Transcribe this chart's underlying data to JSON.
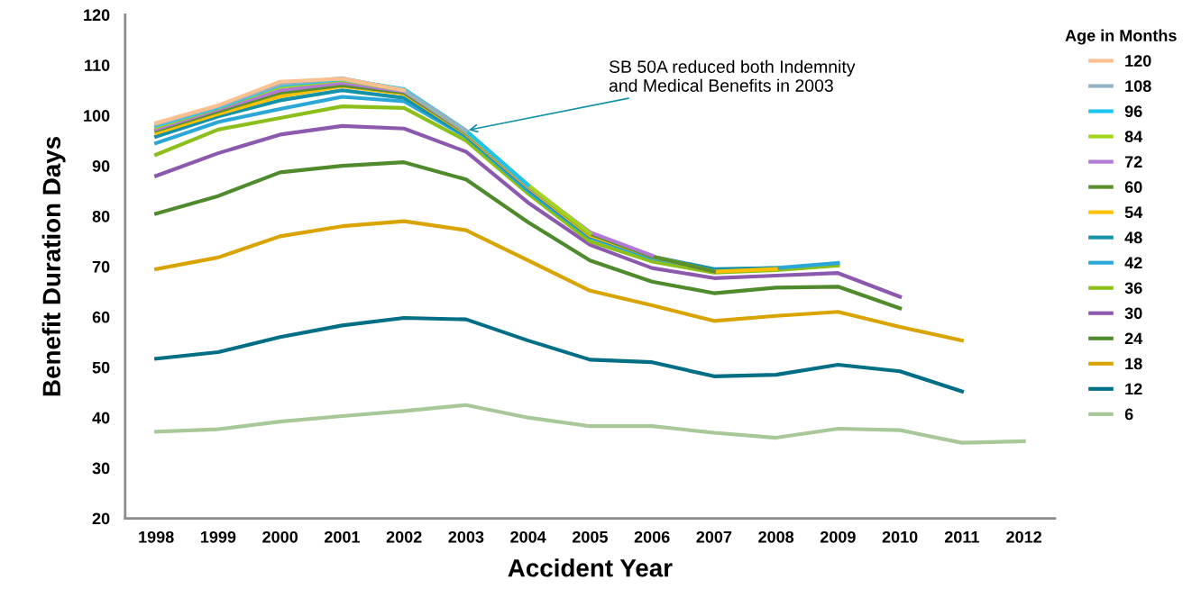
{
  "chart_data": {
    "type": "line",
    "xlabel": "Accident Year",
    "ylabel": "Benefit Duration Days",
    "legend_title": "Age in Months",
    "legend": "right",
    "grid": false,
    "marker": "none",
    "line_style": "solid",
    "x": [
      1998,
      1999,
      2000,
      2001,
      2002,
      2003,
      2004,
      2005,
      2006,
      2007,
      2008,
      2009,
      2010,
      2011,
      2012
    ],
    "xlim": [
      1997.5,
      2012.5
    ],
    "xticks": [
      1998,
      1999,
      2000,
      2001,
      2002,
      2003,
      2004,
      2005,
      2006,
      2007,
      2008,
      2009,
      2010,
      2011,
      2012
    ],
    "ylim": [
      20,
      120
    ],
    "yticks": [
      20,
      30,
      40,
      50,
      60,
      70,
      80,
      90,
      100,
      110,
      120
    ],
    "annotations": [
      {
        "text": "SB 50A reduced both Indemnity\nand Medical Benefits in 2003",
        "x": 2003,
        "y": 97
      }
    ],
    "series": [
      {
        "name": "120",
        "color": "#fac090",
        "values": [
          98.5,
          102.0,
          106.7,
          107.3,
          105.0,
          null,
          null,
          null,
          null,
          null,
          null,
          null,
          null,
          null,
          null
        ]
      },
      {
        "name": "108",
        "color": "#93b3c4",
        "values": [
          98.2,
          101.8,
          106.2,
          107.4,
          105.0,
          97.0,
          null,
          null,
          null,
          null,
          null,
          null,
          null,
          null,
          null
        ]
      },
      {
        "name": "96",
        "color": "#1fc3f0",
        "values": [
          98.0,
          101.6,
          106.0,
          107.2,
          105.2,
          97.0,
          86.2,
          null,
          null,
          null,
          null,
          null,
          null,
          null,
          null
        ]
      },
      {
        "name": "84",
        "color": "#a4d51e",
        "values": [
          97.7,
          101.5,
          105.7,
          107.0,
          105.0,
          96.8,
          86.2,
          76.6,
          null,
          null,
          null,
          null,
          null,
          null,
          null
        ]
      },
      {
        "name": "72",
        "color": "#b07ad6",
        "values": [
          97.3,
          101.2,
          105.0,
          106.5,
          104.8,
          96.6,
          86.0,
          76.8,
          72.2,
          null,
          null,
          null,
          null,
          null,
          null
        ]
      },
      {
        "name": "60",
        "color": "#5a8f2e",
        "values": [
          97.0,
          100.8,
          104.5,
          106.0,
          104.5,
          96.5,
          86.0,
          76.5,
          72.0,
          69.0,
          null,
          null,
          null,
          null,
          null
        ]
      },
      {
        "name": "54",
        "color": "#ffc000",
        "values": [
          96.5,
          100.3,
          103.8,
          105.8,
          104.3,
          96.3,
          85.8,
          76.2,
          72.0,
          69.0,
          69.5,
          null,
          null,
          null,
          null
        ]
      },
      {
        "name": "48",
        "color": "#1591a8",
        "values": [
          95.8,
          99.8,
          103.0,
          105.0,
          103.5,
          96.0,
          85.5,
          76.0,
          72.0,
          69.5,
          69.7,
          null,
          null,
          null,
          null
        ]
      },
      {
        "name": "42",
        "color": "#2aa7d6",
        "values": [
          94.5,
          98.7,
          101.3,
          103.7,
          102.8,
          95.8,
          85.0,
          75.8,
          71.7,
          69.3,
          69.7,
          70.7,
          null,
          null,
          null
        ]
      },
      {
        "name": "36",
        "color": "#8cbf1a",
        "values": [
          92.2,
          97.2,
          99.5,
          101.8,
          101.5,
          95.0,
          84.5,
          75.0,
          71.0,
          68.8,
          69.3,
          70.2,
          null,
          null,
          null
        ]
      },
      {
        "name": "30",
        "color": "#8b59ae",
        "values": [
          88.0,
          92.5,
          96.2,
          97.9,
          97.4,
          92.8,
          82.7,
          74.3,
          69.7,
          67.7,
          68.2,
          68.7,
          64.0,
          null,
          null
        ]
      },
      {
        "name": "24",
        "color": "#4f8a2d",
        "values": [
          80.5,
          84.0,
          88.7,
          90.0,
          90.7,
          87.3,
          78.8,
          71.2,
          67.0,
          64.7,
          65.8,
          66.0,
          61.7,
          null,
          null
        ]
      },
      {
        "name": "18",
        "color": "#d9a300",
        "values": [
          69.5,
          71.8,
          76.0,
          78.0,
          79.0,
          77.2,
          71.2,
          65.2,
          62.3,
          59.2,
          60.2,
          61.0,
          58.0,
          55.3,
          null
        ]
      },
      {
        "name": "12",
        "color": "#006f86",
        "values": [
          51.7,
          53.0,
          56.0,
          58.3,
          59.8,
          59.5,
          55.3,
          51.5,
          51.0,
          48.2,
          48.5,
          50.5,
          49.2,
          45.2,
          null
        ]
      },
      {
        "name": "6",
        "color": "#a8c89a",
        "values": [
          37.2,
          37.7,
          39.2,
          40.3,
          41.3,
          42.5,
          40.0,
          38.3,
          38.3,
          37.0,
          36.0,
          37.8,
          37.5,
          35.0,
          35.3
        ]
      }
    ]
  }
}
